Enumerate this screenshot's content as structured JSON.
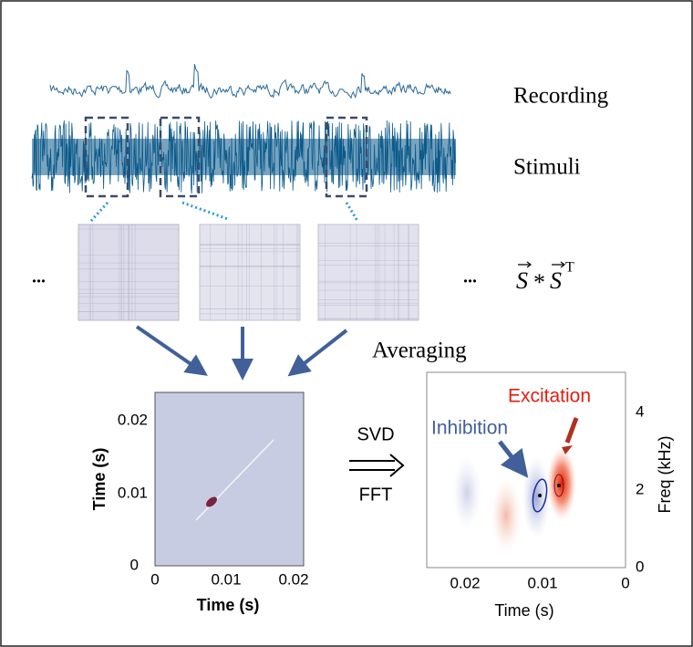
{
  "labels": {
    "recording": "Recording",
    "stimuli": "Stimuli",
    "ellipsis_left": "...",
    "ellipsis_right": "...",
    "averaging": "Averaging",
    "svd": "SVD",
    "fft": "FFT",
    "inhibition": "Inhibition",
    "excitation": "Excitation"
  },
  "formula": {
    "left": "S",
    "op": "*",
    "right": "S",
    "sup": "T"
  },
  "left_plot": {
    "x_label": "Time (s)",
    "y_label": "Time (s)",
    "xticks": [
      "0",
      "0.01",
      "0.02"
    ],
    "yticks": [
      "0",
      "0.01",
      "0.02"
    ]
  },
  "right_plot": {
    "x_label": "Time (s)",
    "y_label": "Freq (kHz)",
    "xticks": [
      "0.02",
      "0.01",
      "0"
    ],
    "yticks": [
      "0",
      "2",
      "4"
    ]
  }
}
